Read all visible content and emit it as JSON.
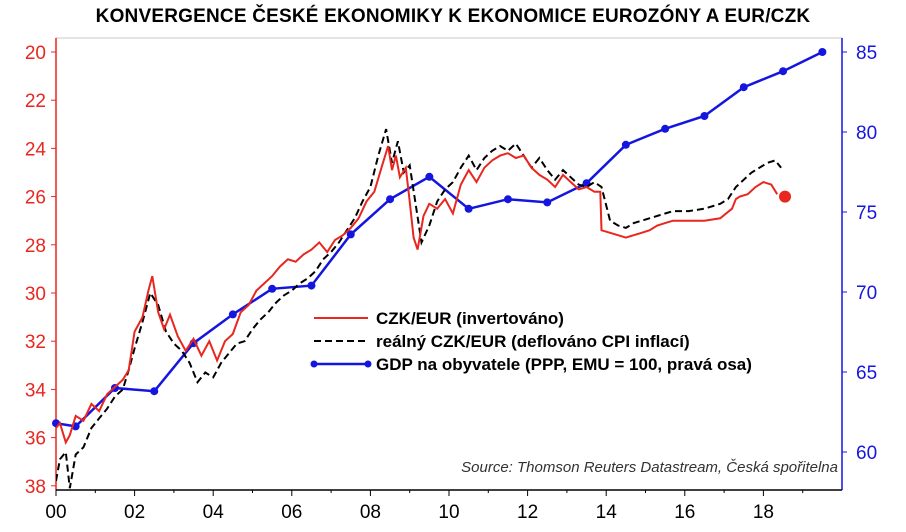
{
  "chart_data": {
    "type": "line",
    "title": "KONVERGENCE ČESKÉ EKONOMIKY K EKONOMICE EUROZÓNY A EUR/CZK",
    "source": "Source: Thomson Reuters Datastream, Česká spořitelna",
    "x_ticks": [
      "00",
      "02",
      "04",
      "06",
      "08",
      "10",
      "12",
      "14",
      "16",
      "18"
    ],
    "x_tick_values": [
      2000,
      2002,
      2004,
      2006,
      2008,
      2010,
      2012,
      2014,
      2016,
      2018
    ],
    "xlim": [
      2000,
      2020
    ],
    "y_left": {
      "ticks": [
        "20",
        "22",
        "24",
        "26",
        "28",
        "30",
        "32",
        "34",
        "36",
        "38"
      ],
      "range": [
        20,
        38
      ],
      "inverted": true,
      "color": "#e8271f"
    },
    "y_right": {
      "ticks": [
        "85",
        "80",
        "75",
        "70",
        "65",
        "60"
      ],
      "range": [
        58,
        86
      ],
      "color": "#1515e0"
    },
    "legend_position": "center-right",
    "colors": {
      "czk_eur": "#e8271f",
      "real": "#000000",
      "gdp": "#1515e0",
      "last_point": "#e8271f"
    },
    "series": [
      {
        "name": "CZK/EUR (invertováno)",
        "axis": "left",
        "style": "solid",
        "x": [
          2000.0,
          2000.1,
          2000.25,
          2000.35,
          2000.5,
          2000.7,
          2000.9,
          2001.1,
          2001.3,
          2001.5,
          2001.7,
          2001.85,
          2002.0,
          2002.2,
          2002.35,
          2002.45,
          2002.6,
          2002.75,
          2002.9,
          2003.1,
          2003.3,
          2003.5,
          2003.7,
          2003.9,
          2004.1,
          2004.3,
          2004.5,
          2004.7,
          2004.9,
          2005.1,
          2005.3,
          2005.5,
          2005.7,
          2005.9,
          2006.1,
          2006.3,
          2006.5,
          2006.7,
          2006.9,
          2007.1,
          2007.3,
          2007.5,
          2007.7,
          2007.9,
          2008.1,
          2008.3,
          2008.45,
          2008.55,
          2008.65,
          2008.75,
          2008.9,
          2009.0,
          2009.1,
          2009.2,
          2009.35,
          2009.5,
          2009.7,
          2009.9,
          2010.1,
          2010.3,
          2010.5,
          2010.7,
          2010.9,
          2011.1,
          2011.3,
          2011.5,
          2011.7,
          2011.9,
          2012.1,
          2012.3,
          2012.5,
          2012.7,
          2012.9,
          2013.1,
          2013.3,
          2013.5,
          2013.7,
          2013.85,
          2013.88,
          2014.1,
          2014.3,
          2014.5,
          2014.7,
          2014.9,
          2015.1,
          2015.3,
          2015.5,
          2015.7,
          2015.9,
          2016.1,
          2016.5,
          2016.9,
          2017.2,
          2017.3,
          2017.4,
          2017.6,
          2017.8,
          2018.0,
          2018.2,
          2018.35
        ],
        "values": [
          35.6,
          35.4,
          36.2,
          35.9,
          35.1,
          35.3,
          34.6,
          34.9,
          34.2,
          33.9,
          33.6,
          33.2,
          31.6,
          31.0,
          29.9,
          29.3,
          30.8,
          31.5,
          30.9,
          31.8,
          32.4,
          31.9,
          32.6,
          32.0,
          32.8,
          32.0,
          31.7,
          30.8,
          30.5,
          29.9,
          29.6,
          29.3,
          28.9,
          28.6,
          28.7,
          28.4,
          28.2,
          27.9,
          28.3,
          27.8,
          27.6,
          27.3,
          26.9,
          26.2,
          25.8,
          24.7,
          23.9,
          24.9,
          24.3,
          25.2,
          24.8,
          26.2,
          27.7,
          28.2,
          26.8,
          26.3,
          26.5,
          26.1,
          26.7,
          25.5,
          24.9,
          25.4,
          24.8,
          24.5,
          24.3,
          24.2,
          24.4,
          24.3,
          24.8,
          25.1,
          25.3,
          25.6,
          25.1,
          25.4,
          25.7,
          25.6,
          25.8,
          25.8,
          27.4,
          27.5,
          27.6,
          27.7,
          27.6,
          27.5,
          27.4,
          27.2,
          27.1,
          27.0,
          27.0,
          27.0,
          27.0,
          26.9,
          26.5,
          26.1,
          26.0,
          25.9,
          25.6,
          25.4,
          25.5,
          25.9
        ]
      },
      {
        "name": "reálný CZK/EUR (deflováno CPI inflací)",
        "axis": "left",
        "style": "dashed",
        "x": [
          2000.0,
          2000.1,
          2000.25,
          2000.35,
          2000.5,
          2000.7,
          2000.9,
          2001.1,
          2001.3,
          2001.5,
          2001.7,
          2001.85,
          2002.0,
          2002.2,
          2002.4,
          2002.6,
          2002.8,
          2003.0,
          2003.2,
          2003.4,
          2003.6,
          2003.8,
          2004.0,
          2004.2,
          2004.4,
          2004.6,
          2004.8,
          2005.0,
          2005.2,
          2005.4,
          2005.6,
          2005.8,
          2006.0,
          2006.2,
          2006.4,
          2006.6,
          2006.8,
          2007.0,
          2007.2,
          2007.4,
          2007.6,
          2007.8,
          2008.0,
          2008.2,
          2008.4,
          2008.55,
          2008.7,
          2008.85,
          2009.0,
          2009.15,
          2009.3,
          2009.5,
          2009.7,
          2009.9,
          2010.1,
          2010.3,
          2010.5,
          2010.7,
          2010.9,
          2011.1,
          2011.3,
          2011.5,
          2011.7,
          2011.9,
          2012.1,
          2012.3,
          2012.5,
          2012.7,
          2012.9,
          2013.1,
          2013.3,
          2013.5,
          2013.7,
          2013.88,
          2014.1,
          2014.3,
          2014.5,
          2014.7,
          2014.9,
          2015.1,
          2015.3,
          2015.5,
          2015.7,
          2015.9,
          2016.1,
          2016.5,
          2016.9,
          2017.1,
          2017.3,
          2017.5,
          2017.7,
          2017.9,
          2018.1,
          2018.3,
          2018.45
        ],
        "values": [
          37.8,
          36.9,
          36.6,
          38.1,
          36.7,
          36.4,
          35.6,
          35.2,
          34.8,
          34.3,
          34.0,
          33.2,
          32.3,
          31.2,
          30.0,
          30.5,
          31.6,
          32.1,
          32.4,
          32.9,
          33.7,
          33.3,
          33.5,
          32.9,
          32.5,
          32.1,
          32.0,
          31.5,
          31.1,
          30.8,
          30.4,
          30.1,
          29.9,
          29.6,
          29.4,
          29.1,
          28.6,
          28.3,
          27.9,
          27.4,
          26.9,
          26.2,
          25.6,
          24.3,
          23.2,
          24.6,
          23.7,
          25.0,
          24.7,
          26.3,
          27.9,
          27.2,
          26.2,
          25.7,
          25.4,
          24.8,
          24.3,
          24.9,
          24.4,
          24.1,
          23.9,
          24.1,
          23.8,
          24.3,
          24.8,
          24.4,
          24.9,
          25.3,
          24.9,
          25.2,
          25.5,
          25.6,
          25.4,
          25.6,
          27.0,
          27.2,
          27.3,
          27.1,
          27.0,
          26.9,
          26.8,
          26.7,
          26.6,
          26.6,
          26.6,
          26.5,
          26.3,
          26.1,
          25.6,
          25.3,
          25.0,
          24.8,
          24.6,
          24.5,
          24.8
        ]
      },
      {
        "name": "GDP na obyvatele (PPP, EMU = 100, pravá osa)",
        "axis": "right",
        "style": "solid-markers",
        "x": [
          2000,
          2000.5,
          2001.5,
          2002.5,
          2003.5,
          2004.5,
          2005.5,
          2006.5,
          2007.5,
          2008.5,
          2009.5,
          2010.5,
          2011.5,
          2012.5,
          2013.5,
          2014.5,
          2015.5,
          2016.5,
          2017.5,
          2018.5,
          2019.5
        ],
        "values": [
          61.8,
          61.6,
          64.0,
          63.8,
          66.8,
          68.6,
          70.2,
          70.4,
          73.6,
          75.8,
          77.2,
          75.2,
          75.8,
          75.6,
          76.8,
          79.2,
          80.2,
          81.0,
          82.8,
          83.8,
          85.0
        ]
      }
    ],
    "last_point": {
      "x": 2018.55,
      "value": 26.0
    }
  }
}
